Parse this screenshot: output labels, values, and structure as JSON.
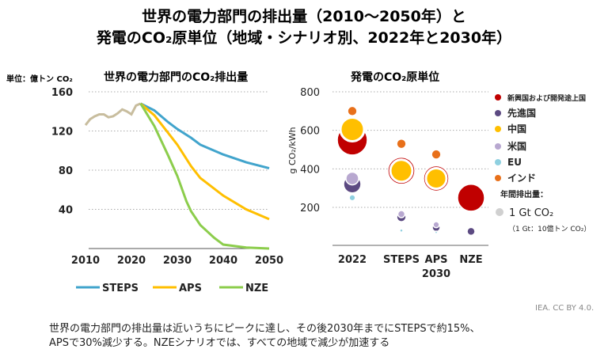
{
  "slide": {
    "title_line1": "世界の電力部門の排出量（2010〜2050年）と",
    "title_line2": "発電のCO₂原単位（地域・シナリオ別、2022年と2030年）",
    "credit": "IEA. CC BY 4.0.",
    "caption_line1": "世界の電力部門の排出量は近いうちにピークに達し、その後2030年までにSTEPSで約15%、",
    "caption_line2": "APSで30%減少する。NZEシナリオでは、すべての地域で減少が加速する"
  },
  "chart_data": [
    {
      "type": "line",
      "title": "世界の電力部門のCO₂排出量",
      "unit_label": "単位：億トン CO₂",
      "xlim": [
        2010,
        2050
      ],
      "ylim": [
        0,
        160
      ],
      "x_ticks": [
        "2010",
        "2020",
        "2030",
        "2040",
        "2050"
      ],
      "y_ticks": [
        "40",
        "80",
        "120",
        "160"
      ],
      "grid": "horizontal dotted",
      "legend_position": "bottom",
      "history": {
        "color": "#c8bd9e",
        "x": [
          2010,
          2011,
          2012,
          2013,
          2014,
          2015,
          2016,
          2017,
          2018,
          2019,
          2020,
          2021,
          2022
        ],
        "y": [
          126,
          132,
          135,
          137,
          137,
          134,
          135,
          138,
          142,
          140,
          137,
          146,
          148
        ]
      },
      "series": [
        {
          "name": "STEPS",
          "color": "#41a4cc",
          "x": [
            2022,
            2025,
            2028,
            2030,
            2033,
            2035,
            2040,
            2045,
            2050
          ],
          "y": [
            148,
            141,
            129,
            122,
            113,
            106,
            96,
            88,
            82
          ]
        },
        {
          "name": "APS",
          "color": "#ffbf00",
          "x": [
            2022,
            2025,
            2028,
            2030,
            2033,
            2035,
            2040,
            2045,
            2050
          ],
          "y": [
            148,
            136,
            118,
            106,
            84,
            72,
            54,
            40,
            30
          ]
        },
        {
          "name": "NZE",
          "color": "#8ccd4c",
          "x": [
            2022,
            2025,
            2028,
            2030,
            2032,
            2033,
            2035,
            2038,
            2040,
            2045,
            2050
          ],
          "y": [
            148,
            125,
            95,
            74,
            48,
            38,
            24,
            11,
            4,
            1,
            0
          ]
        }
      ]
    },
    {
      "type": "scatter",
      "title": "発電のCO₂原単位",
      "ylabel": "g CO₂/kWh",
      "ylim": [
        0,
        800
      ],
      "y_ticks": [
        "200",
        "400",
        "600",
        "800"
      ],
      "categories": [
        "2022",
        "STEPS",
        "APS",
        "NZE"
      ],
      "category_group_label": "2030",
      "grid": "horizontal dotted",
      "legend_position": "right",
      "size_legend": {
        "title": "年間排出量：",
        "label": "1 Gt CO₂",
        "note": "（1 Gt：10億トン CO₂）",
        "value_gt": 1,
        "color": "#d0d0d0"
      },
      "series": [
        {
          "name": "新興国および開発途上国",
          "color": "#c00000",
          "points": [
            {
              "cat": "2022",
              "y": 550,
              "gt": 14.4
            },
            {
              "cat": "STEPS",
              "y": 390,
              "gt": 11.6
            },
            {
              "cat": "APS",
              "y": 350,
              "gt": 10.2
            },
            {
              "cat": "NZE",
              "y": 250,
              "gt": 11.6
            }
          ]
        },
        {
          "name": "先進国",
          "color": "#5c4a82",
          "points": [
            {
              "cat": "2022",
              "y": 320,
              "gt": 4.8
            },
            {
              "cat": "STEPS",
              "y": 150,
              "gt": 1.4
            },
            {
              "cat": "APS",
              "y": 95,
              "gt": 1.0
            },
            {
              "cat": "NZE",
              "y": 75,
              "gt": 1.0
            }
          ]
        },
        {
          "name": "中国",
          "color": "#ffbf00",
          "points": [
            {
              "cat": "2022",
              "y": 605,
              "gt": 9.0
            },
            {
              "cat": "STEPS",
              "y": 390,
              "gt": 7.8
            },
            {
              "cat": "APS",
              "y": 350,
              "gt": 6.8
            }
          ]
        },
        {
          "name": "米国",
          "color": "#b8a8d0",
          "points": [
            {
              "cat": "2022",
              "y": 350,
              "gt": 2.6
            },
            {
              "cat": "STEPS",
              "y": 165,
              "gt": 0.8
            },
            {
              "cat": "APS",
              "y": 110,
              "gt": 0.6
            }
          ]
        },
        {
          "name": "EU",
          "color": "#8fd0e0",
          "points": [
            {
              "cat": "2022",
              "y": 250,
              "gt": 0.6
            },
            {
              "cat": "STEPS",
              "y": 80,
              "gt": 0.16
            },
            {
              "cat": "APS",
              "y": 70,
              "gt": 0.1
            }
          ]
        },
        {
          "name": "インド",
          "color": "#e8701a",
          "points": [
            {
              "cat": "2022",
              "y": 700,
              "gt": 1.4
            },
            {
              "cat": "STEPS",
              "y": 530,
              "gt": 1.4
            },
            {
              "cat": "APS",
              "y": 475,
              "gt": 1.4
            }
          ]
        }
      ]
    }
  ]
}
